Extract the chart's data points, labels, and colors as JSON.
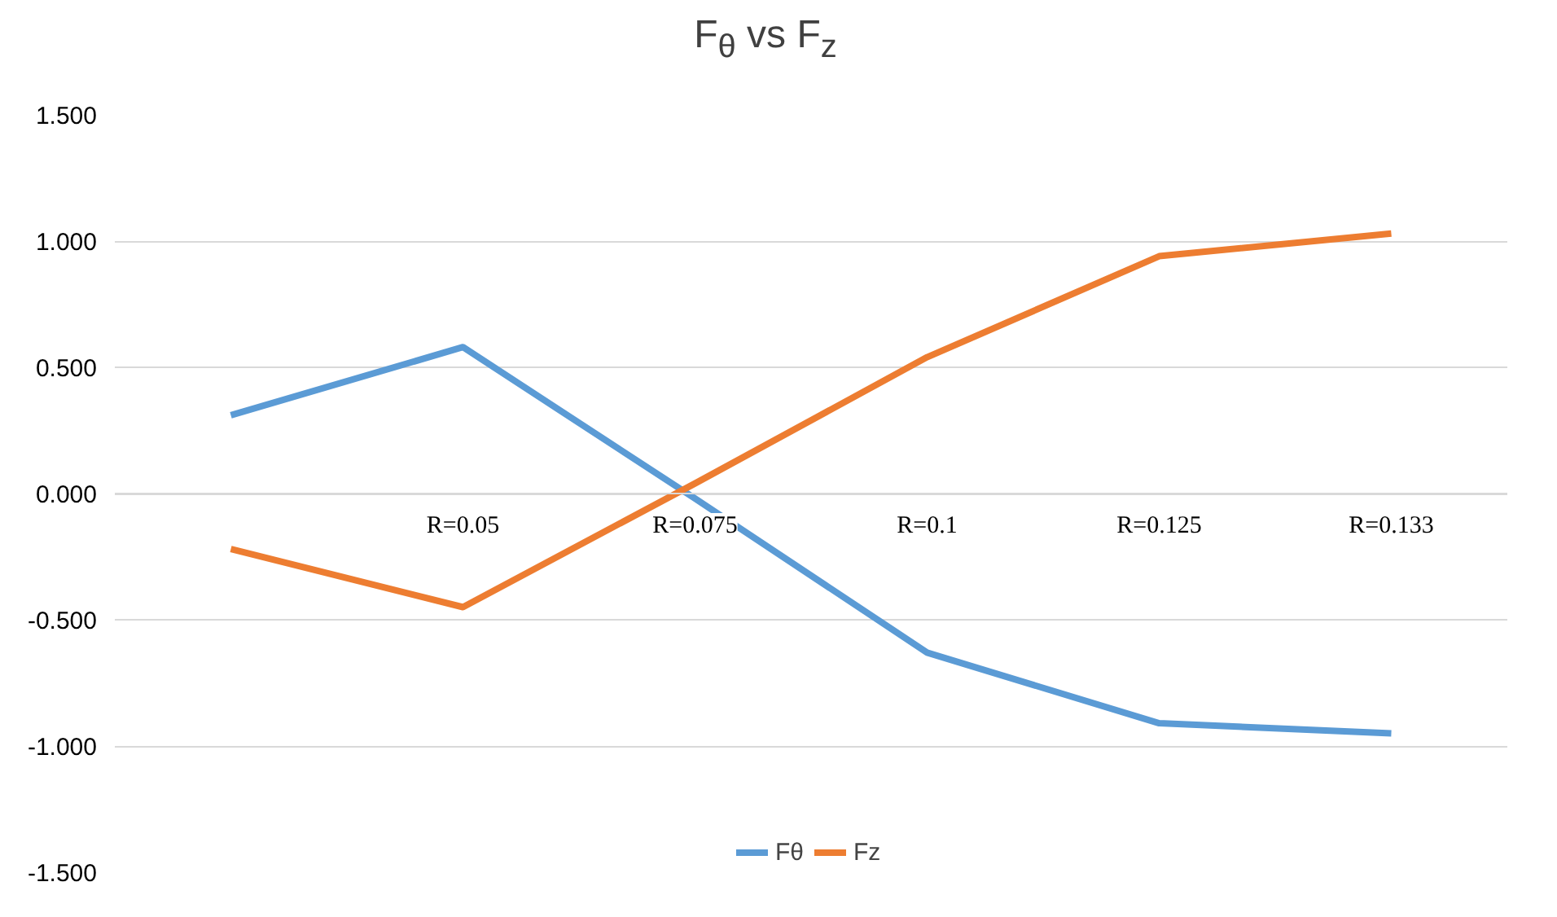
{
  "chart_data": {
    "type": "line",
    "title": "F$_{θ}$ vs F$_{z}$",
    "categories": [
      null,
      "R=0.05",
      "R=0.075",
      "R=0.1",
      "R=0.125",
      "R=0.133"
    ],
    "series": [
      {
        "name": "Fθ",
        "color": "#5b9bd5",
        "values": [
          0.31,
          0.58,
          -0.02,
          -0.63,
          -0.91,
          -0.95
        ]
      },
      {
        "name": "Fz",
        "color": "#ed7d31",
        "values": [
          -0.22,
          -0.45,
          0.04,
          0.54,
          0.94,
          1.03
        ]
      }
    ],
    "ylim": [
      -1.5,
      1.5
    ],
    "yticks": [
      {
        "value": -1.5,
        "label": "-1.500"
      },
      {
        "value": -1.0,
        "label": "-1.000"
      },
      {
        "value": -0.5,
        "label": "-0.500"
      },
      {
        "value": 0,
        "label": "0.000"
      },
      {
        "value": 0.5,
        "label": "0.500"
      },
      {
        "value": 1.0,
        "label": "1.000"
      },
      {
        "value": 1.5,
        "label": "1.500"
      }
    ],
    "grid": "y",
    "legend": "bottom",
    "marker": "none",
    "line_style": "solid"
  }
}
